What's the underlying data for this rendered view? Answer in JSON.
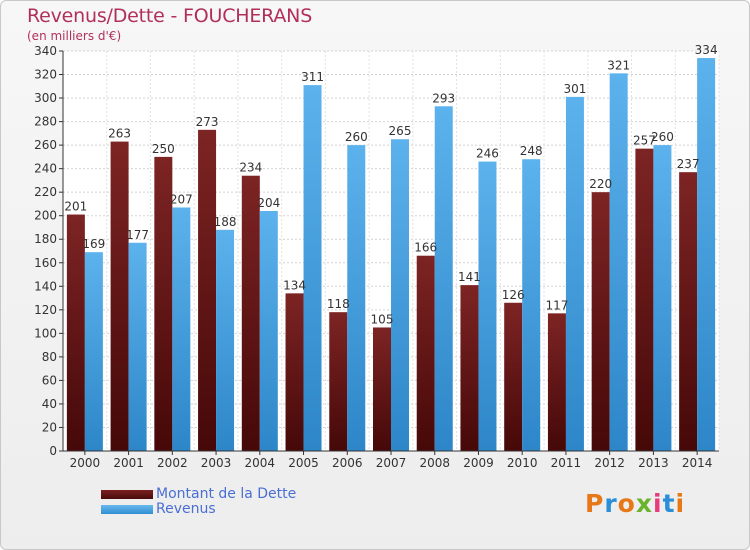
{
  "header": {
    "title": "Revenus/Dette - FOUCHERANS",
    "subtitle": "(en milliers d'€)"
  },
  "legend": {
    "debt_label": "Montant de la Dette",
    "revenue_label": "Revenus"
  },
  "logo": {
    "text": "Proxiti",
    "letter_colors": [
      "#e67817",
      "#2a8fd8",
      "#e67817",
      "#6ab42d",
      "#e63c7c",
      "#2a8fd8",
      "#e67817"
    ]
  },
  "colors": {
    "debt": "#6b1515",
    "revenue": "#3a9ee0",
    "title": "#b0305a",
    "legend_text": "#4a6fd4"
  },
  "chart_data": {
    "type": "bar",
    "title": "Revenus/Dette - FOUCHERANS",
    "subtitle": "(en milliers d'€)",
    "categories": [
      "2000",
      "2001",
      "2002",
      "2003",
      "2004",
      "2005",
      "2006",
      "2007",
      "2008",
      "2009",
      "2010",
      "2011",
      "2012",
      "2013",
      "2014"
    ],
    "series": [
      {
        "name": "Montant de la Dette",
        "values": [
          201,
          263,
          250,
          273,
          234,
          134,
          118,
          105,
          166,
          141,
          126,
          117,
          220,
          257,
          237
        ]
      },
      {
        "name": "Revenus",
        "values": [
          169,
          177,
          207,
          188,
          204,
          311,
          260,
          265,
          293,
          246,
          248,
          301,
          321,
          260,
          334
        ]
      }
    ],
    "ylim": [
      0,
      340
    ],
    "ytick_step": 20,
    "grid": true,
    "legend_position": "bottom-left"
  }
}
